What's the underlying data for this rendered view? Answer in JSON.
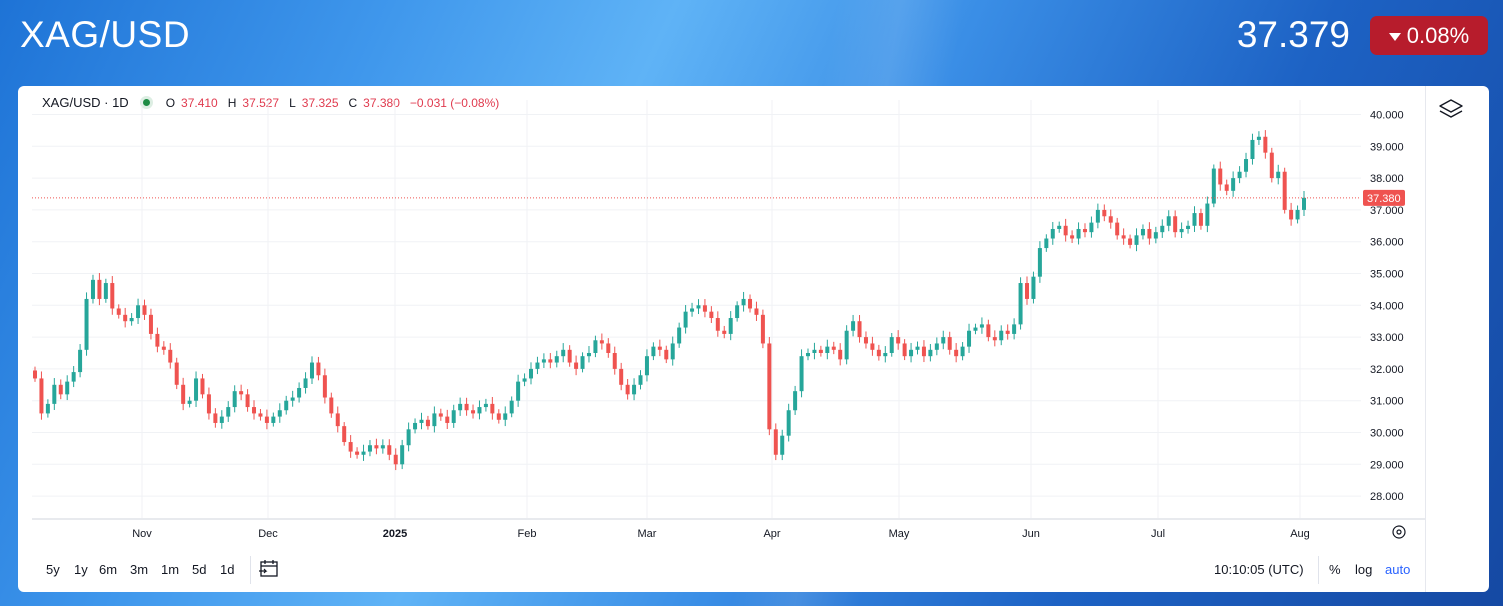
{
  "header": {
    "symbol": "XAG/USD",
    "price": "37.379",
    "change": "0.08%",
    "change_color": "#b71c2c"
  },
  "legend": {
    "symbol_interval": "XAG/USD · 1D",
    "o_label": "O",
    "o_value": "37.410",
    "h_label": "H",
    "h_value": "37.527",
    "l_label": "L",
    "l_value": "37.325",
    "c_label": "C",
    "c_value": "37.380",
    "change": "−0.031 (−0.08%)"
  },
  "toolbar": {
    "ranges": [
      "5y",
      "1y",
      "6m",
      "3m",
      "1m",
      "5d",
      "1d"
    ],
    "time": "10:10:05 (UTC)",
    "percent": "%",
    "log": "log",
    "auto": "auto"
  },
  "icons": [
    "layers-icon",
    "calendar-icon",
    "settings-icon",
    "arrow-down-icon"
  ],
  "colors": {
    "up": "#26a69a",
    "down": "#ef5350",
    "accent": "#2962ff"
  },
  "chart_data": {
    "type": "candlestick",
    "interval": "1D",
    "ylim": [
      27.4,
      40.4
    ],
    "y_ticks": [
      "40.000",
      "39.000",
      "38.000",
      "37.000",
      "36.000",
      "35.000",
      "34.000",
      "33.000",
      "32.000",
      "31.000",
      "30.000",
      "29.000",
      "28.000"
    ],
    "x_ticks": [
      "Nov",
      "Dec",
      "2025",
      "Feb",
      "Mar",
      "Apr",
      "May",
      "Jun",
      "Jul",
      "Aug"
    ],
    "last_price_label": "37.380",
    "last_price": 37.38,
    "closes": [
      31.7,
      30.6,
      30.9,
      31.5,
      31.2,
      31.6,
      31.9,
      32.6,
      34.2,
      34.8,
      34.2,
      34.7,
      33.9,
      33.7,
      33.5,
      33.6,
      34.0,
      33.7,
      33.1,
      32.7,
      32.6,
      32.2,
      31.5,
      30.9,
      31.0,
      31.7,
      31.2,
      30.6,
      30.3,
      30.5,
      30.8,
      31.3,
      31.2,
      30.8,
      30.6,
      30.5,
      30.3,
      30.5,
      30.7,
      31.0,
      31.1,
      31.4,
      31.7,
      32.2,
      31.8,
      31.1,
      30.6,
      30.2,
      29.7,
      29.4,
      29.3,
      29.4,
      29.6,
      29.5,
      29.6,
      29.3,
      29.0,
      29.6,
      30.1,
      30.3,
      30.4,
      30.2,
      30.6,
      30.5,
      30.3,
      30.7,
      30.9,
      30.7,
      30.6,
      30.8,
      30.9,
      30.6,
      30.4,
      30.6,
      31.0,
      31.6,
      31.7,
      32.0,
      32.2,
      32.3,
      32.2,
      32.4,
      32.6,
      32.2,
      32.0,
      32.4,
      32.5,
      32.9,
      32.8,
      32.5,
      32.0,
      31.5,
      31.2,
      31.5,
      31.8,
      32.4,
      32.7,
      32.6,
      32.3,
      32.8,
      33.3,
      33.8,
      33.9,
      34.0,
      33.8,
      33.6,
      33.2,
      33.1,
      33.6,
      34.0,
      34.2,
      33.9,
      33.7,
      32.8,
      30.1,
      29.3,
      29.9,
      30.7,
      31.3,
      32.4,
      32.5,
      32.6,
      32.5,
      32.7,
      32.6,
      32.3,
      33.2,
      33.5,
      33.0,
      32.8,
      32.6,
      32.4,
      32.5,
      33.0,
      32.8,
      32.4,
      32.6,
      32.7,
      32.4,
      32.6,
      32.8,
      33.0,
      32.6,
      32.4,
      32.7,
      33.2,
      33.3,
      33.4,
      33.0,
      32.9,
      33.2,
      33.1,
      33.4,
      34.7,
      34.2,
      34.9,
      35.8,
      36.1,
      36.4,
      36.5,
      36.2,
      36.1,
      36.4,
      36.3,
      36.6,
      37.0,
      36.8,
      36.6,
      36.2,
      36.1,
      35.9,
      36.2,
      36.4,
      36.1,
      36.3,
      36.5,
      36.8,
      36.3,
      36.4,
      36.5,
      36.9,
      36.5,
      37.2,
      38.3,
      37.8,
      37.6,
      38.0,
      38.2,
      38.6,
      39.2,
      39.3,
      38.8,
      38.0,
      38.2,
      37.0,
      36.7,
      37.0,
      37.38
    ]
  }
}
